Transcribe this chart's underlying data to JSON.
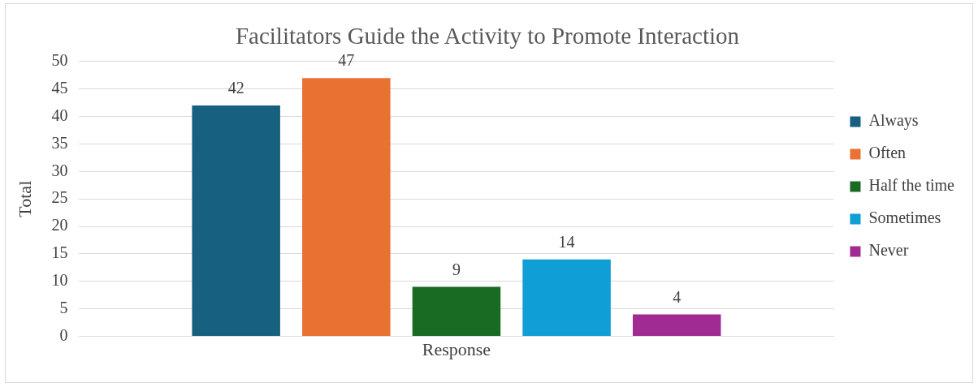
{
  "chart_data": {
    "type": "bar",
    "title": "Facilitators Guide the Activity to Promote Interaction",
    "ylabel": "Total",
    "categories": [
      "Response"
    ],
    "series": [
      {
        "name": "Always",
        "color": "#17607f",
        "values": [
          42
        ]
      },
      {
        "name": "Often",
        "color": "#e97132",
        "values": [
          47
        ]
      },
      {
        "name": "Half the time",
        "color": "#196b24",
        "values": [
          9
        ]
      },
      {
        "name": "Sometimes",
        "color": "#0f9ed5",
        "values": [
          14
        ]
      },
      {
        "name": "Never",
        "color": "#a02b93",
        "values": [
          4
        ]
      }
    ],
    "ylim": [
      0,
      50
    ],
    "yticks": [
      0,
      5,
      10,
      15,
      20,
      25,
      30,
      35,
      40,
      45,
      50
    ],
    "grid": "y",
    "legend": "right",
    "data_labels": true
  }
}
